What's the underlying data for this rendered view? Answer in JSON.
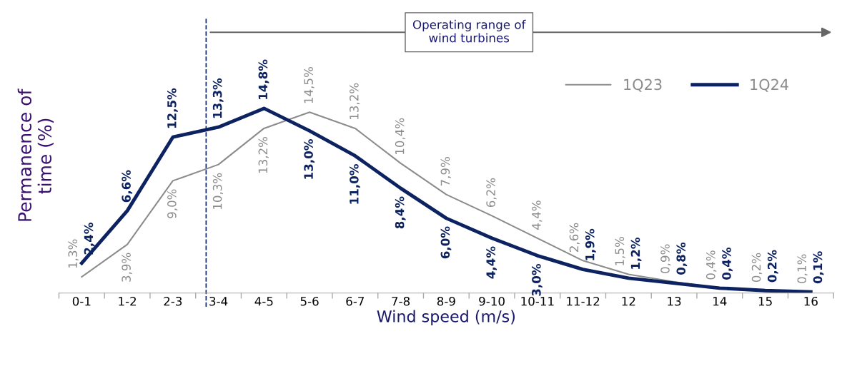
{
  "chart_data": {
    "type": "line",
    "xlabel": "Wind speed (m/s)",
    "ylabel": "Permanence of\ntime (%)",
    "categories": [
      "0-1",
      "1-2",
      "2-3",
      "3-4",
      "4-5",
      "5-6",
      "6-7",
      "7-8",
      "8-9",
      "9-10",
      "10-11",
      "11-12",
      "12",
      "13",
      "14",
      "15",
      "16"
    ],
    "series": [
      {
        "name": "1Q23",
        "color": "#8c8c8c",
        "values": [
          1.3,
          3.9,
          9.0,
          10.3,
          13.2,
          14.5,
          13.2,
          10.4,
          7.9,
          6.2,
          4.4,
          2.6,
          1.5,
          0.9,
          0.4,
          0.2,
          0.1
        ],
        "value_labels": [
          "1,3%",
          "3,9%",
          "9,0%",
          "10,3%",
          "13,2%",
          "14,5%",
          "13,2%",
          "10,4%",
          "7,9%",
          "6,2%",
          "4,4%",
          "2,6%",
          "1,5%",
          "0,9%",
          "0,4%",
          "0,2%",
          "0,1%"
        ]
      },
      {
        "name": "1Q24",
        "color": "#0d2260",
        "values": [
          2.4,
          6.6,
          12.5,
          13.3,
          14.8,
          13.0,
          11.0,
          8.4,
          6.0,
          4.4,
          3.0,
          1.9,
          1.2,
          0.8,
          0.4,
          0.2,
          0.1
        ],
        "value_labels": [
          "2,4%",
          "6,6%",
          "12,5%",
          "13,3%",
          "14,8%",
          "13,0%",
          "11,0%",
          "8,4%",
          "6,0%",
          "4,4%",
          "3,0%",
          "1,9%",
          "1,2%",
          "0,8%",
          "0,4%",
          "0,2%",
          "0,1%"
        ]
      }
    ],
    "ylim": [
      0,
      22
    ],
    "tick_labels": "x",
    "grid": false,
    "legend": "top right",
    "marker": "none",
    "line_style": "solid",
    "ref_lines": [
      {
        "axis": "x",
        "value": "3-4",
        "label": null,
        "color": "#0d2260",
        "line_style": "dashed"
      }
    ],
    "annotations": [
      "Operating range of\nwind turbines"
    ]
  }
}
